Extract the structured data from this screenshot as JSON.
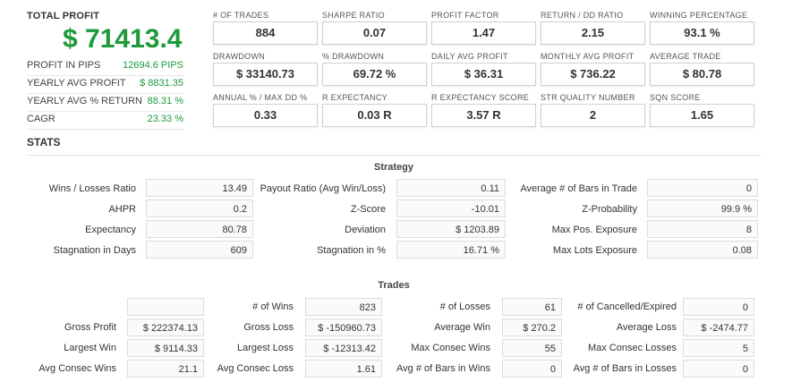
{
  "total_profit": {
    "label": "TOTAL PROFIT",
    "value": "$ 71413.4"
  },
  "summary": [
    {
      "label": "PROFIT IN PIPS",
      "value": "12694.6 PIPS"
    },
    {
      "label": "YEARLY AVG PROFIT",
      "value": "$ 8831.35"
    },
    {
      "label": "YEARLY AVG % RETURN",
      "value": "88.31 %"
    },
    {
      "label": "CAGR",
      "value": "23.33 %"
    }
  ],
  "metrics": [
    {
      "label": "# OF TRADES",
      "value": "884"
    },
    {
      "label": "SHARPE RATIO",
      "value": "0.07"
    },
    {
      "label": "PROFIT FACTOR",
      "value": "1.47"
    },
    {
      "label": "RETURN / DD RATIO",
      "value": "2.15"
    },
    {
      "label": "WINNING PERCENTAGE",
      "value": "93.1 %"
    },
    {
      "label": "DRAWDOWN",
      "value": "$ 33140.73"
    },
    {
      "label": "% DRAWDOWN",
      "value": "69.72 %"
    },
    {
      "label": "DAILY AVG PROFIT",
      "value": "$ 36.31"
    },
    {
      "label": "MONTHLY AVG PROFIT",
      "value": "$ 736.22"
    },
    {
      "label": "AVERAGE TRADE",
      "value": "$ 80.78"
    },
    {
      "label": "ANNUAL % / MAX DD %",
      "value": "0.33"
    },
    {
      "label": "R EXPECTANCY",
      "value": "0.03 R"
    },
    {
      "label": "R EXPECTANCY SCORE",
      "value": "3.57 R"
    },
    {
      "label": "STR QUALITY NUMBER",
      "value": "2"
    },
    {
      "label": "SQN SCORE",
      "value": "1.65"
    }
  ],
  "stats_title": "STATS",
  "strategy": {
    "title": "Strategy",
    "rows": [
      [
        {
          "label": "Wins / Losses Ratio",
          "value": "13.49"
        },
        {
          "label": "Payout Ratio (Avg Win/Loss)",
          "value": "0.11"
        },
        {
          "label": "Average # of Bars in Trade",
          "value": "0"
        }
      ],
      [
        {
          "label": "AHPR",
          "value": "0.2"
        },
        {
          "label": "Z-Score",
          "value": "-10.01"
        },
        {
          "label": "Z-Probability",
          "value": "99.9 %"
        }
      ],
      [
        {
          "label": "Expectancy",
          "value": "80.78"
        },
        {
          "label": "Deviation",
          "value": "$ 1203.89"
        },
        {
          "label": "Max Pos. Exposure",
          "value": "8"
        }
      ],
      [
        {
          "label": "Stagnation in Days",
          "value": "609"
        },
        {
          "label": "Stagnation in %",
          "value": "16.71 %"
        },
        {
          "label": "Max Lots Exposure",
          "value": "0.08"
        }
      ]
    ]
  },
  "trades": {
    "title": "Trades",
    "rows": [
      [
        {
          "label": "",
          "value": ""
        },
        {
          "label": "# of Wins",
          "value": "823"
        },
        {
          "label": "# of Losses",
          "value": "61"
        },
        {
          "label": "# of Cancelled/Expired",
          "value": "0"
        }
      ],
      [
        {
          "label": "Gross Profit",
          "value": "$ 222374.13"
        },
        {
          "label": "Gross Loss",
          "value": "$ -150960.73"
        },
        {
          "label": "Average Win",
          "value": "$ 270.2"
        },
        {
          "label": "Average Loss",
          "value": "$ -2474.77"
        }
      ],
      [
        {
          "label": "Largest Win",
          "value": "$ 9114.33"
        },
        {
          "label": "Largest Loss",
          "value": "$ -12313.42"
        },
        {
          "label": "Max Consec Wins",
          "value": "55"
        },
        {
          "label": "Max Consec Losses",
          "value": "5"
        }
      ],
      [
        {
          "label": "Avg Consec Wins",
          "value": "21.1"
        },
        {
          "label": "Avg Consec Loss",
          "value": "1.61"
        },
        {
          "label": "Avg # of Bars in Wins",
          "value": "0"
        },
        {
          "label": "Avg # of Bars in Losses",
          "value": "0"
        }
      ]
    ]
  }
}
